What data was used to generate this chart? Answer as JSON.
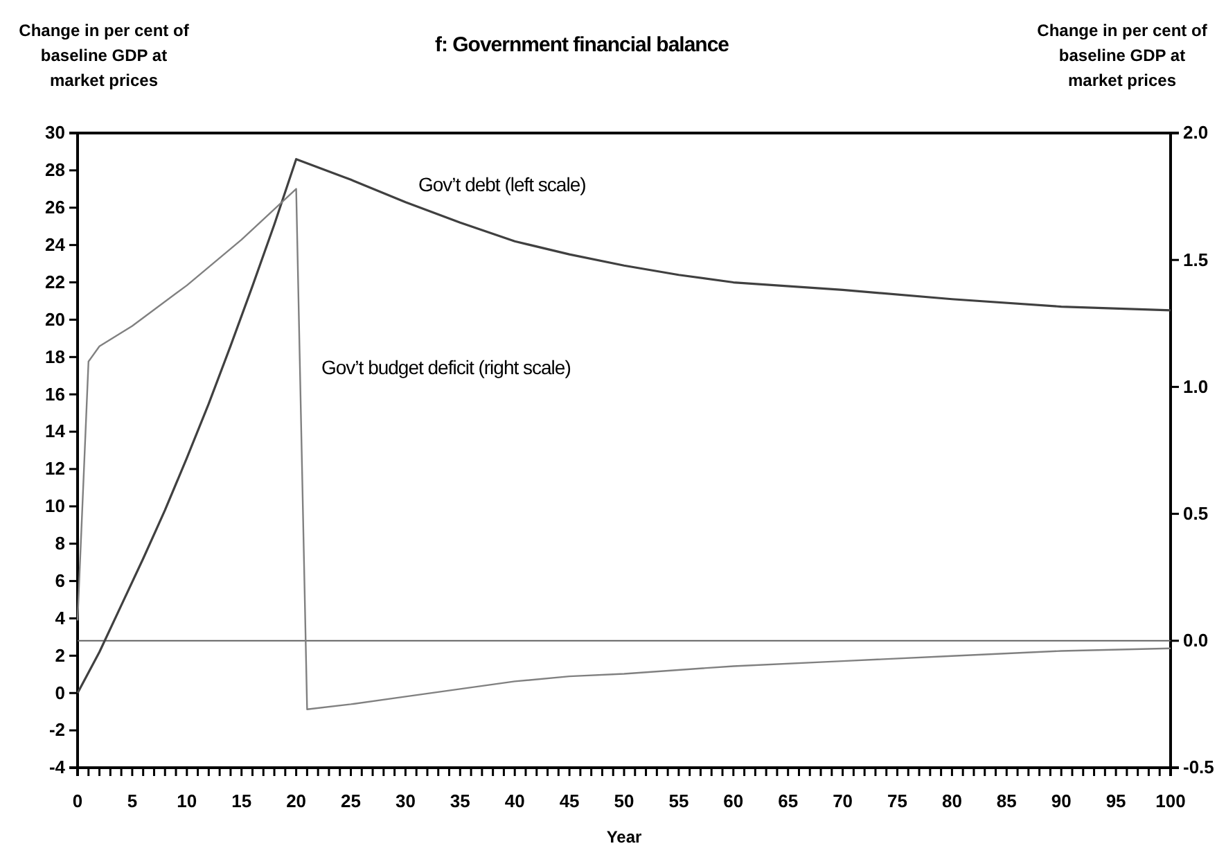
{
  "chart_data": {
    "type": "line",
    "title": "f: Government financial balance",
    "xlabel": "Year",
    "ylabel": "Change in per cent of baseline GDP at market prices",
    "y2label": "Change in per cent of baseline GDP at market prices",
    "xlim": [
      0,
      100
    ],
    "ylim": [
      -4,
      30
    ],
    "y2lim": [
      -0.5,
      2.0
    ],
    "xticks": [
      0,
      {
        "value": 1,
        "label": null
      },
      {
        "value": 2,
        "label": null
      },
      {
        "value": 3,
        "label": null
      },
      {
        "value": 4,
        "label": null
      },
      5,
      {
        "value": 6,
        "label": null
      },
      {
        "value": 7,
        "label": null
      },
      {
        "value": 8,
        "label": null
      },
      {
        "value": 9,
        "label": null
      },
      10,
      {
        "value": 11,
        "label": null
      },
      {
        "value": 12,
        "label": null
      },
      {
        "value": 13,
        "label": null
      },
      {
        "value": 14,
        "label": null
      },
      15,
      {
        "value": 16,
        "label": null
      },
      {
        "value": 17,
        "label": null
      },
      {
        "value": 18,
        "label": null
      },
      {
        "value": 19,
        "label": null
      },
      20,
      {
        "value": 21,
        "label": null
      },
      {
        "value": 22,
        "label": null
      },
      {
        "value": 23,
        "label": null
      },
      {
        "value": 24,
        "label": null
      },
      25,
      {
        "value": 26,
        "label": null
      },
      {
        "value": 27,
        "label": null
      },
      {
        "value": 28,
        "label": null
      },
      {
        "value": 29,
        "label": null
      },
      30,
      {
        "value": 31,
        "label": null
      },
      {
        "value": 32,
        "label": null
      },
      {
        "value": 33,
        "label": null
      },
      {
        "value": 34,
        "label": null
      },
      35,
      {
        "value": 36,
        "label": null
      },
      {
        "value": 37,
        "label": null
      },
      {
        "value": 38,
        "label": null
      },
      {
        "value": 39,
        "label": null
      },
      40,
      {
        "value": 41,
        "label": null
      },
      {
        "value": 42,
        "label": null
      },
      {
        "value": 43,
        "label": null
      },
      {
        "value": 44,
        "label": null
      },
      45,
      {
        "value": 46,
        "label": null
      },
      {
        "value": 47,
        "label": null
      },
      {
        "value": 48,
        "label": null
      },
      {
        "value": 49,
        "label": null
      },
      50,
      {
        "value": 51,
        "label": null
      },
      {
        "value": 52,
        "label": null
      },
      {
        "value": 53,
        "label": null
      },
      {
        "value": 54,
        "label": null
      },
      55,
      {
        "value": 56,
        "label": null
      },
      {
        "value": 57,
        "label": null
      },
      {
        "value": 58,
        "label": null
      },
      {
        "value": 59,
        "label": null
      },
      60,
      {
        "value": 61,
        "label": null
      },
      {
        "value": 62,
        "label": null
      },
      {
        "value": 63,
        "label": null
      },
      {
        "value": 64,
        "label": null
      },
      65,
      {
        "value": 66,
        "label": null
      },
      {
        "value": 67,
        "label": null
      },
      {
        "value": 68,
        "label": null
      },
      {
        "value": 69,
        "label": null
      },
      70,
      {
        "value": 71,
        "label": null
      },
      {
        "value": 72,
        "label": null
      },
      {
        "value": 73,
        "label": null
      },
      {
        "value": 74,
        "label": null
      },
      75,
      {
        "value": 76,
        "label": null
      },
      {
        "value": 77,
        "label": null
      },
      {
        "value": 78,
        "label": null
      },
      {
        "value": 79,
        "label": null
      },
      80,
      {
        "value": 81,
        "label": null
      },
      {
        "value": 82,
        "label": null
      },
      {
        "value": 83,
        "label": null
      },
      {
        "value": 84,
        "label": null
      },
      85,
      {
        "value": 86,
        "label": null
      },
      {
        "value": 87,
        "label": null
      },
      {
        "value": 88,
        "label": null
      },
      {
        "value": 89,
        "label": null
      },
      90,
      {
        "value": 91,
        "label": null
      },
      {
        "value": 92,
        "label": null
      },
      {
        "value": 93,
        "label": null
      },
      {
        "value": 94,
        "label": null
      },
      95,
      {
        "value": 96,
        "label": null
      },
      {
        "value": 97,
        "label": null
      },
      {
        "value": 98,
        "label": null
      },
      {
        "value": 99,
        "label": null
      },
      100
    ],
    "yticks": [
      -4,
      -2,
      0,
      2,
      4,
      6,
      8,
      10,
      12,
      14,
      16,
      18,
      20,
      22,
      24,
      26,
      28,
      30
    ],
    "y2ticks": [
      {
        "value": -0.5,
        "label": "-0.5"
      },
      {
        "value": 0,
        "label": "0.0"
      },
      {
        "value": 0.5,
        "label": "0.5"
      },
      {
        "value": 1.0,
        "label": "1.0"
      },
      {
        "value": 1.5,
        "label": "1.5"
      },
      {
        "value": 2.0,
        "label": "2.0"
      }
    ],
    "ref_lines": [
      {
        "axis": "y2",
        "value": 0,
        "color": "#606060"
      }
    ],
    "series": [
      {
        "name": "Gov’t debt (left scale)",
        "color": "#404040",
        "x": [
          0,
          2,
          4,
          6,
          8,
          10,
          12,
          14,
          16,
          18,
          20,
          25,
          30,
          35,
          40,
          45,
          50,
          55,
          60,
          70,
          80,
          90,
          100
        ],
        "values": [
          0,
          2.2,
          4.7,
          7.2,
          9.8,
          12.6,
          15.5,
          18.6,
          21.8,
          25.1,
          28.6,
          27.5,
          26.3,
          25.2,
          24.2,
          23.5,
          22.9,
          22.4,
          22.0,
          21.6,
          21.1,
          20.7,
          20.5
        ]
      },
      {
        "name": "Gov’t budget deficit (right scale)",
        "axis": "y2",
        "color": "#808080",
        "x": [
          0,
          1,
          2,
          5,
          10,
          15,
          20,
          21,
          25,
          30,
          35,
          40,
          45,
          50,
          60,
          70,
          80,
          90,
          100
        ],
        "values": [
          0.08,
          1.1,
          1.16,
          1.24,
          1.4,
          1.58,
          1.78,
          -0.27,
          -0.25,
          -0.22,
          -0.19,
          -0.16,
          -0.14,
          -0.13,
          -0.1,
          -0.08,
          -0.06,
          -0.04,
          -0.03
        ]
      }
    ]
  }
}
